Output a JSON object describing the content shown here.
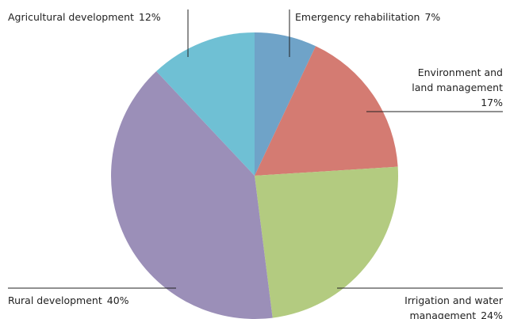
{
  "chart_data": {
    "type": "pie",
    "categories": [
      "Emergency rehabilitation",
      "Environment and land management",
      "Irrigation and water management",
      "Rural development",
      "Agricultural development"
    ],
    "values": [
      7,
      17,
      24,
      40,
      12
    ],
    "value_labels": [
      "7%",
      "17%",
      "24%",
      "40%",
      "12%"
    ],
    "colors": [
      "#6fa3c8",
      "#d47b72",
      "#b3cb80",
      "#9b8fb8",
      "#6fc0d4"
    ]
  }
}
